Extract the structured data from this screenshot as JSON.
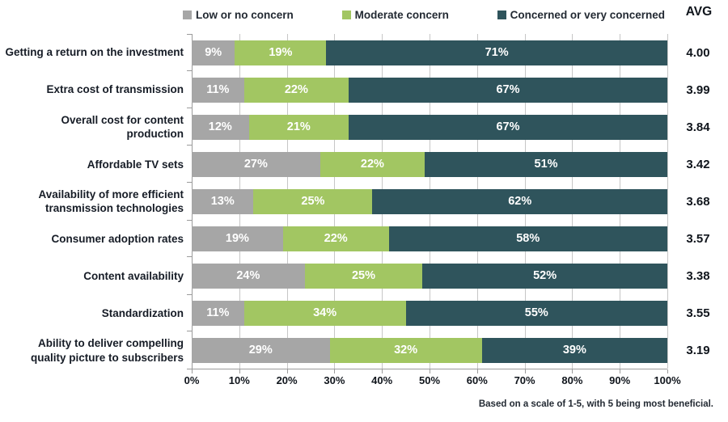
{
  "legend": {
    "items": [
      {
        "label": "Low or no concern",
        "color": "#a6a6a6"
      },
      {
        "label": "Moderate concern",
        "color": "#a2c662"
      },
      {
        "label": "Concerned or very concerned",
        "color": "#2f545c"
      }
    ],
    "avg_header": "AVG"
  },
  "chart_data": {
    "type": "bar",
    "orientation": "horizontal",
    "stacked": true,
    "categories": [
      "Getting a return on the investment",
      "Extra cost of transmission",
      "Overall cost for content production",
      "Affordable TV sets",
      "Availability of more efficient transmission technologies",
      "Consumer adoption rates",
      "Content availability",
      "Standardization",
      "Ability to deliver compelling quality picture to subscribers"
    ],
    "series": [
      {
        "name": "Low or no concern",
        "color": "#a6a6a6",
        "values": [
          9,
          11,
          12,
          27,
          13,
          19,
          24,
          11,
          29
        ]
      },
      {
        "name": "Moderate concern",
        "color": "#a2c662",
        "values": [
          19,
          22,
          21,
          22,
          25,
          22,
          25,
          34,
          32
        ]
      },
      {
        "name": "Concerned or very concerned",
        "color": "#2f545c",
        "values": [
          71,
          67,
          67,
          51,
          62,
          58,
          52,
          55,
          39
        ]
      }
    ],
    "avg": {
      "header": "AVG",
      "values": [
        "4.00",
        "3.99",
        "3.84",
        "3.42",
        "3.68",
        "3.57",
        "3.38",
        "3.55",
        "3.19"
      ]
    },
    "x_ticks": [
      "0%",
      "10%",
      "20%",
      "30%",
      "40%",
      "50%",
      "60%",
      "70%",
      "80%",
      "90%",
      "100%"
    ],
    "xlim": [
      0,
      100
    ],
    "value_suffix": "%",
    "grid": true,
    "legend_position": "top",
    "footnote": "Based on a scale of 1-5, with 5 being most beneficial."
  }
}
